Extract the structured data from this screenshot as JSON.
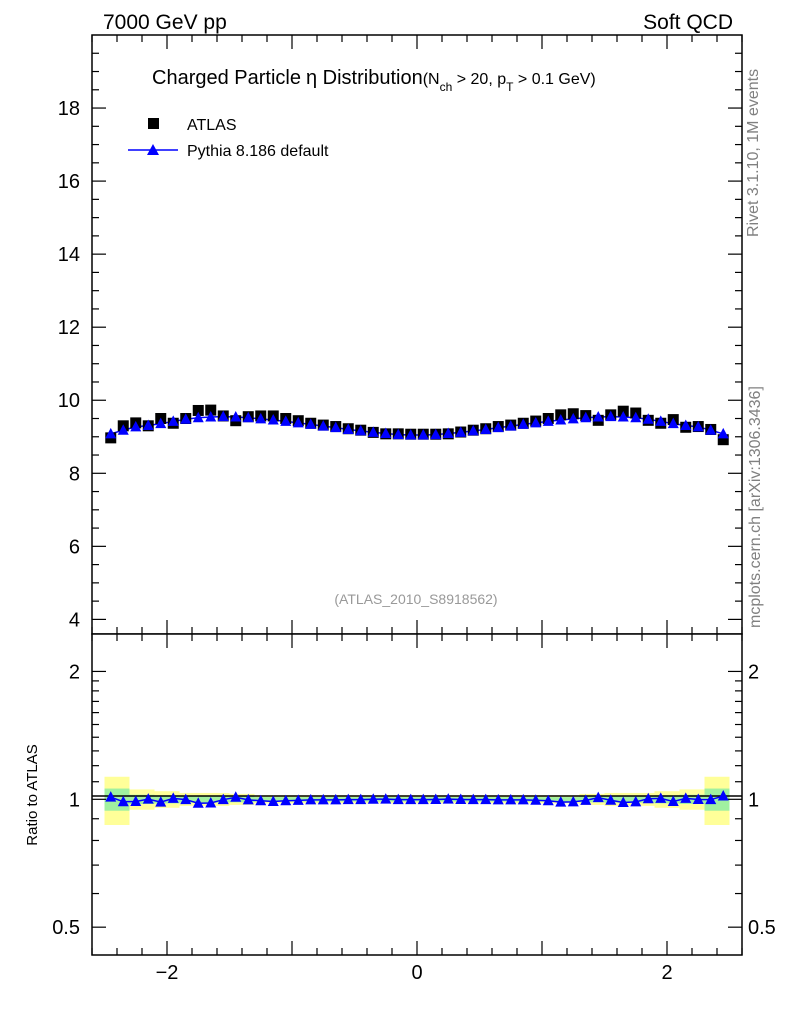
{
  "header": {
    "left": "7000 GeV pp",
    "right": "Soft QCD"
  },
  "plot": {
    "title_main": "Charged Particle",
    "title_eta": "η",
    "title_tail": " Distribution",
    "title_cond": {
      "n": "(N",
      "ch": "ch",
      "mid": " > 20, p",
      "t": "T",
      "end": " > 0.1 GeV)"
    },
    "analysis_id": "(ATLAS_2010_S8918562)"
  },
  "side_text": {
    "rivet": "Rivet 3.1.10,  1M events",
    "url": "mcplots.cern.ch [arXiv:1306.3436]"
  },
  "colors": {
    "data": "#000000",
    "mc": "#0000ff",
    "band_inner": "#a0f0a0",
    "band_outer": "#ffff99"
  },
  "chart_data": [
    {
      "type": "scatter",
      "name": "main",
      "xlim": [
        -2.6,
        2.6
      ],
      "ylim": [
        3.6,
        20.0
      ],
      "yticks": [
        4,
        6,
        8,
        10,
        12,
        14,
        16,
        18
      ],
      "ytick_labels": [
        "4",
        "6",
        "8",
        "10",
        "12",
        "14",
        "16",
        "18"
      ],
      "legend": {
        "position": "top-left",
        "entries": [
          "ATLAS",
          "Pythia 8.186 default"
        ]
      },
      "x": [
        -2.45,
        -2.35,
        -2.25,
        -2.15,
        -2.05,
        -1.95,
        -1.85,
        -1.75,
        -1.65,
        -1.55,
        -1.45,
        -1.35,
        -1.25,
        -1.15,
        -1.05,
        -0.95,
        -0.85,
        -0.75,
        -0.65,
        -0.55,
        -0.45,
        -0.35,
        -0.25,
        -0.15,
        -0.05,
        0.05,
        0.15,
        0.25,
        0.35,
        0.45,
        0.55,
        0.65,
        0.75,
        0.85,
        0.95,
        1.05,
        1.15,
        1.25,
        1.35,
        1.45,
        1.55,
        1.65,
        1.75,
        1.85,
        1.95,
        2.05,
        2.15,
        2.25,
        2.35,
        2.45
      ],
      "series": [
        {
          "name": "ATLAS",
          "marker": "square",
          "values": [
            8.97,
            9.3,
            9.38,
            9.3,
            9.5,
            9.37,
            9.5,
            9.72,
            9.73,
            9.57,
            9.44,
            9.55,
            9.57,
            9.57,
            9.5,
            9.44,
            9.37,
            9.32,
            9.28,
            9.22,
            9.18,
            9.12,
            9.08,
            9.08,
            9.07,
            9.07,
            9.07,
            9.08,
            9.13,
            9.18,
            9.22,
            9.28,
            9.32,
            9.37,
            9.43,
            9.5,
            9.6,
            9.63,
            9.58,
            9.45,
            9.6,
            9.7,
            9.65,
            9.45,
            9.37,
            9.47,
            9.26,
            9.28,
            9.2,
            8.92
          ]
        },
        {
          "name": "Pythia 8.186 default",
          "marker": "triangle",
          "values": [
            9.08,
            9.18,
            9.27,
            9.31,
            9.36,
            9.42,
            9.48,
            9.52,
            9.54,
            9.55,
            9.54,
            9.52,
            9.49,
            9.46,
            9.42,
            9.38,
            9.34,
            9.29,
            9.25,
            9.2,
            9.16,
            9.12,
            9.09,
            9.06,
            9.05,
            9.05,
            9.06,
            9.09,
            9.12,
            9.16,
            9.2,
            9.25,
            9.29,
            9.34,
            9.38,
            9.42,
            9.46,
            9.49,
            9.52,
            9.54,
            9.55,
            9.54,
            9.52,
            9.48,
            9.42,
            9.36,
            9.31,
            9.27,
            9.18,
            9.08
          ]
        }
      ]
    },
    {
      "type": "line",
      "name": "ratio",
      "ylabel": "Ratio to ATLAS",
      "ylim": [
        0.43,
        2.45
      ],
      "yscale": "log",
      "yticks": [
        0.5,
        1,
        2
      ],
      "ytick_labels": [
        "0.5",
        "1",
        "2"
      ],
      "xticks": [
        -2,
        0,
        2
      ],
      "xtick_labels": [
        "−2",
        "0",
        "2"
      ],
      "band_edges": [
        -2.5,
        -2.3,
        -2.1,
        -1.9,
        -1.7,
        -1.5,
        -1.3,
        1.3,
        1.5,
        1.7,
        1.9,
        2.1,
        2.3,
        2.5
      ],
      "band_inner": [
        0.06,
        0.025,
        0.022,
        0.018,
        0.018,
        0.016,
        0.012,
        0.016,
        0.018,
        0.018,
        0.022,
        0.025,
        0.06
      ],
      "band_outer": [
        0.13,
        0.055,
        0.045,
        0.035,
        0.035,
        0.03,
        0.022,
        0.03,
        0.035,
        0.035,
        0.045,
        0.055,
        0.13
      ],
      "x": [
        -2.45,
        -2.35,
        -2.25,
        -2.15,
        -2.05,
        -1.95,
        -1.85,
        -1.75,
        -1.65,
        -1.55,
        -1.45,
        -1.35,
        -1.25,
        -1.15,
        -1.05,
        -0.95,
        -0.85,
        -0.75,
        -0.65,
        -0.55,
        -0.45,
        -0.35,
        -0.25,
        -0.15,
        -0.05,
        0.05,
        0.15,
        0.25,
        0.35,
        0.45,
        0.55,
        0.65,
        0.75,
        0.85,
        0.95,
        1.05,
        1.15,
        1.25,
        1.35,
        1.45,
        1.55,
        1.65,
        1.75,
        1.85,
        1.95,
        2.05,
        2.15,
        2.25,
        2.35,
        2.45
      ],
      "series": [
        {
          "name": "Pythia 8.186 default",
          "values": [
            1.012,
            0.987,
            0.988,
            1.001,
            0.985,
            1.005,
            0.998,
            0.979,
            0.98,
            0.998,
            1.011,
            0.997,
            0.992,
            0.988,
            0.992,
            0.994,
            0.997,
            0.997,
            0.997,
            0.998,
            0.998,
            1.0,
            1.001,
            0.998,
            0.998,
            0.998,
            0.999,
            1.001,
            0.999,
            0.998,
            0.998,
            0.997,
            0.997,
            0.997,
            0.995,
            0.992,
            0.985,
            0.986,
            0.994,
            1.009,
            0.995,
            0.983,
            0.986,
            1.003,
            1.005,
            0.988,
            1.005,
            0.999,
            0.998,
            1.018
          ]
        }
      ]
    }
  ]
}
